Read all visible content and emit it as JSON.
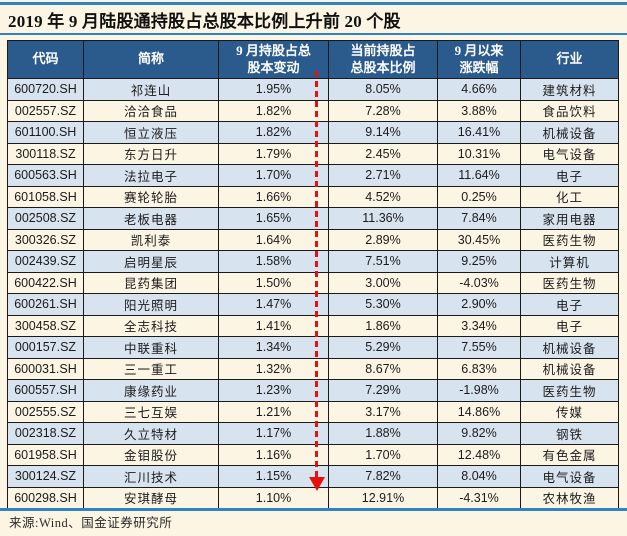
{
  "title": "2019 年 9 月陆股通持股占总股本比例上升前 20 个股",
  "source_note": "来源:Wind、国金证券研究所",
  "annotation": {
    "type": "red-dashed-down-arrow",
    "color": "#e8100c",
    "over_column": "9 月持股占总股本变动"
  },
  "colors": {
    "page_bg": "#fcf5e4",
    "header_bg": "#2a5b8c",
    "header_text": "#ffffff",
    "row_alt_bg": "#d8e3f0",
    "rule_blue": "#2e83c5",
    "grid_border": "#1a1a1a",
    "cell_text": "#1b1b1b",
    "annotation_red": "#e8100c"
  },
  "table": {
    "columns": [
      {
        "key": "code",
        "label": "代码"
      },
      {
        "key": "name",
        "label": "简称"
      },
      {
        "key": "change",
        "label": "9 月持股占总\n股本变动"
      },
      {
        "key": "ratio",
        "label": "当前持股占\n总股本比例"
      },
      {
        "key": "pct",
        "label": "9 月以来\n涨跌幅"
      },
      {
        "key": "industry",
        "label": "行业"
      }
    ],
    "rows": [
      [
        "600720.SH",
        "祁连山",
        "1.95%",
        "8.05%",
        "4.66%",
        "建筑材料"
      ],
      [
        "002557.SZ",
        "洽洽食品",
        "1.82%",
        "7.28%",
        "3.88%",
        "食品饮料"
      ],
      [
        "601100.SH",
        "恒立液压",
        "1.82%",
        "9.14%",
        "16.41%",
        "机械设备"
      ],
      [
        "300118.SZ",
        "东方日升",
        "1.79%",
        "2.45%",
        "10.31%",
        "电气设备"
      ],
      [
        "600563.SH",
        "法拉电子",
        "1.70%",
        "2.71%",
        "11.64%",
        "电子"
      ],
      [
        "601058.SH",
        "赛轮轮胎",
        "1.66%",
        "4.52%",
        "0.25%",
        "化工"
      ],
      [
        "002508.SZ",
        "老板电器",
        "1.65%",
        "11.36%",
        "7.84%",
        "家用电器"
      ],
      [
        "300326.SZ",
        "凯利泰",
        "1.64%",
        "2.89%",
        "30.45%",
        "医药生物"
      ],
      [
        "002439.SZ",
        "启明星辰",
        "1.58%",
        "7.51%",
        "9.25%",
        "计算机"
      ],
      [
        "600422.SH",
        "昆药集团",
        "1.50%",
        "3.00%",
        "-4.03%",
        "医药生物"
      ],
      [
        "600261.SH",
        "阳光照明",
        "1.47%",
        "5.30%",
        "2.90%",
        "电子"
      ],
      [
        "300458.SZ",
        "全志科技",
        "1.41%",
        "1.86%",
        "3.34%",
        "电子"
      ],
      [
        "000157.SZ",
        "中联重科",
        "1.34%",
        "5.29%",
        "7.55%",
        "机械设备"
      ],
      [
        "600031.SH",
        "三一重工",
        "1.32%",
        "8.67%",
        "6.83%",
        "机械设备"
      ],
      [
        "600557.SH",
        "康缘药业",
        "1.23%",
        "7.29%",
        "-1.98%",
        "医药生物"
      ],
      [
        "002555.SZ",
        "三七互娱",
        "1.21%",
        "3.17%",
        "14.86%",
        "传媒"
      ],
      [
        "002318.SZ",
        "久立特材",
        "1.17%",
        "1.88%",
        "9.82%",
        "钢铁"
      ],
      [
        "601958.SH",
        "金钼股份",
        "1.16%",
        "1.70%",
        "12.48%",
        "有色金属"
      ],
      [
        "300124.SZ",
        "汇川技术",
        "1.15%",
        "7.82%",
        "8.04%",
        "电气设备"
      ],
      [
        "600298.SH",
        "安琪酵母",
        "1.10%",
        "12.91%",
        "-4.31%",
        "农林牧渔"
      ]
    ]
  }
}
